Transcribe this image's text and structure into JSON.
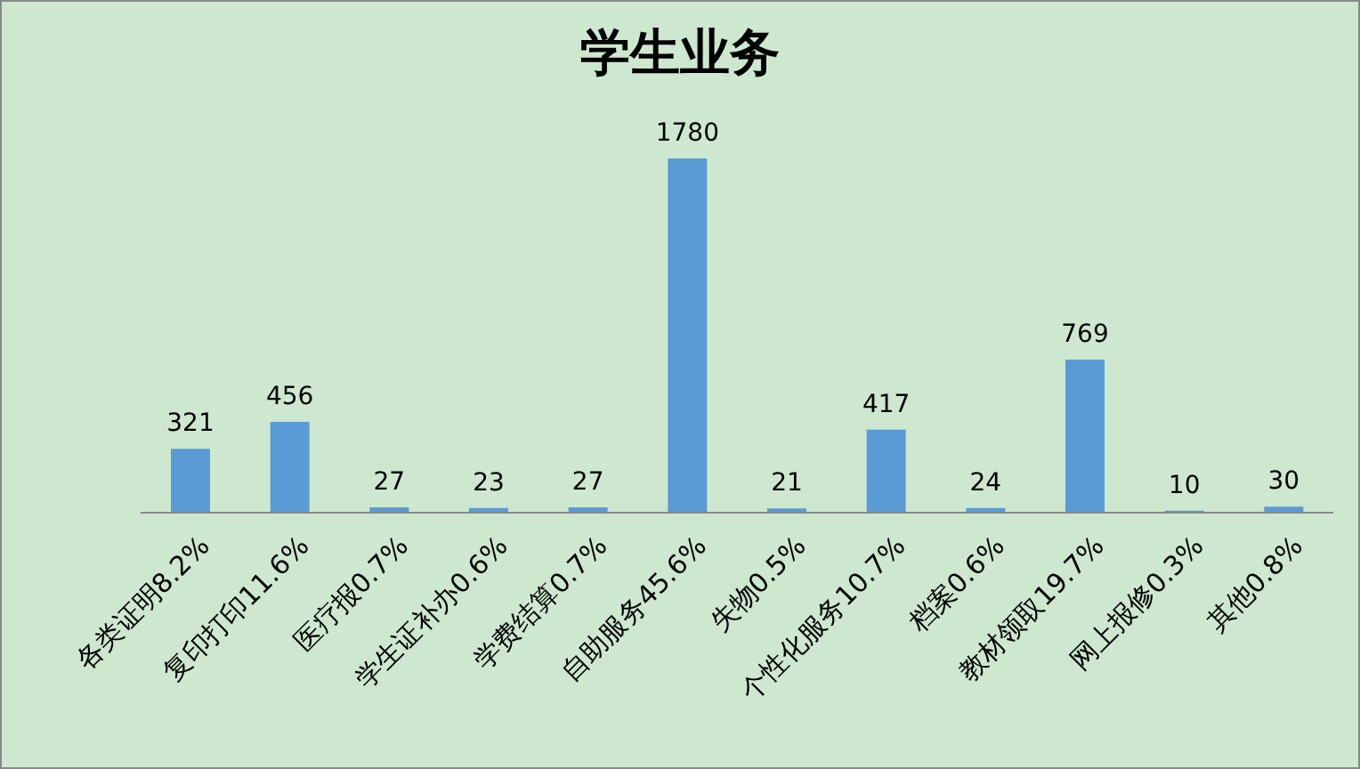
{
  "chart_data": {
    "type": "bar",
    "title": "学生业务",
    "categories": [
      "各类证明8.2%",
      "复印打印11.6%",
      "医疗报0.7%",
      "学生证补办0.6%",
      "学费结算0.7%",
      "自助服务45.6%",
      "失物0.5%",
      "个性化服务10.7%",
      "档案0.6%",
      "教材领取19.7%",
      "网上报修0.3%",
      "其他0.8%"
    ],
    "values": [
      321,
      456,
      27,
      23,
      27,
      1780,
      21,
      417,
      24,
      769,
      10,
      30
    ],
    "color": "#5b9bd5",
    "data_labels": true
  }
}
